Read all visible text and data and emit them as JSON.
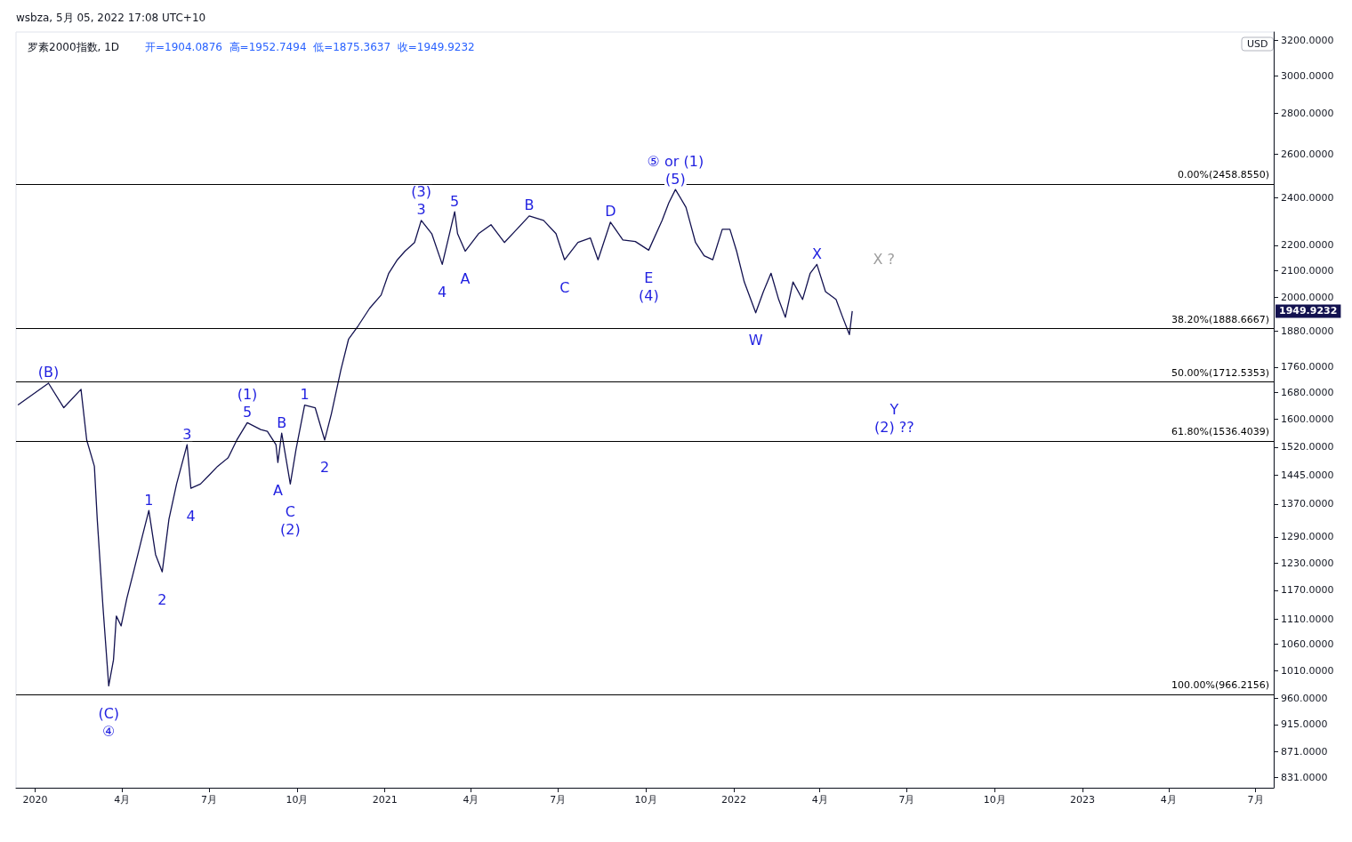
{
  "chart_data": {
    "type": "line",
    "title": "罗素2000指数, 1D",
    "subtitle": "开=1904.0876  高=1952.7494  低=1875.3637  收=1949.9232",
    "log": "y",
    "marker": "none",
    "line_style": "solid",
    "x": [
      "2019-12-14",
      "2020-01-15",
      "2020-01-31",
      "2020-02-18",
      "2020-02-24",
      "2020-03-03",
      "2020-03-06",
      "2020-03-12",
      "2020-03-18",
      "2020-03-23",
      "2020-03-26",
      "2020-03-31",
      "2020-04-06",
      "2020-04-13",
      "2020-04-22",
      "2020-04-29",
      "2020-05-06",
      "2020-05-13",
      "2020-05-20",
      "2020-05-28",
      "2020-06-08",
      "2020-06-12",
      "2020-06-22",
      "2020-07-01",
      "2020-07-10",
      "2020-07-21",
      "2020-07-30",
      "2020-08-10",
      "2020-08-24",
      "2020-08-31",
      "2020-09-09",
      "2020-09-11",
      "2020-09-15",
      "2020-09-24",
      "2020-09-30",
      "2020-10-09",
      "2020-10-20",
      "2020-10-30",
      "2020-11-06",
      "2020-11-16",
      "2020-11-24",
      "2020-12-04",
      "2020-12-16",
      "2020-12-28",
      "2021-01-05",
      "2021-01-14",
      "2021-01-22",
      "2021-02-01",
      "2021-02-08",
      "2021-02-19",
      "2021-03-02",
      "2021-03-15",
      "2021-03-18",
      "2021-03-26",
      "2021-04-09",
      "2021-04-22",
      "2021-05-06",
      "2021-05-19",
      "2021-06-01",
      "2021-06-16",
      "2021-06-29",
      "2021-07-08",
      "2021-07-22",
      "2021-08-04",
      "2021-08-12",
      "2021-08-25",
      "2021-09-07",
      "2021-09-20",
      "2021-10-04",
      "2021-10-18",
      "2021-10-25",
      "2021-11-01",
      "2021-11-12",
      "2021-11-22",
      "2021-12-01",
      "2021-12-10",
      "2021-12-20",
      "2021-12-28",
      "2022-01-04",
      "2022-01-12",
      "2022-01-24",
      "2022-02-01",
      "2022-02-09",
      "2022-02-17",
      "2022-02-24",
      "2022-03-04",
      "2022-03-14",
      "2022-03-22",
      "2022-03-29",
      "2022-04-07",
      "2022-04-18",
      "2022-04-25",
      "2022-05-02",
      "2022-05-05"
    ],
    "series": [
      {
        "color": "#131250",
        "values": [
          1642,
          1709,
          1634,
          1690,
          1540,
          1468,
          1332,
          1135,
          982,
          1030,
          1116,
          1096,
          1153,
          1210,
          1290,
          1354,
          1249,
          1210,
          1332,
          1421,
          1527,
          1410,
          1421,
          1444,
          1468,
          1491,
          1540,
          1590,
          1570,
          1565,
          1527,
          1478,
          1560,
          1421,
          1514,
          1642,
          1634,
          1540,
          1616,
          1752,
          1853,
          1898,
          1960,
          2008,
          2090,
          2142,
          2176,
          2211,
          2302,
          2247,
          2124,
          2339,
          2247,
          2176,
          2247,
          2284,
          2211,
          2265,
          2321,
          2302,
          2247,
          2142,
          2211,
          2229,
          2142,
          2295,
          2221,
          2215,
          2180,
          2302,
          2377,
          2436,
          2358,
          2211,
          2158,
          2142,
          2265,
          2265,
          2176,
          2057,
          1944,
          2021,
          2090,
          1992,
          1928,
          2057,
          1992,
          2090,
          2124,
          2021,
          1992,
          1928,
          1868,
          1949.9232
        ]
      }
    ],
    "xlim": [
      "2019-12-12",
      "2023-07-20"
    ],
    "xticks": [
      {
        "value": "2020-01-01",
        "label": "2020"
      },
      {
        "value": "2020-04-01",
        "label": "4月"
      },
      {
        "value": "2020-07-01",
        "label": "7月"
      },
      {
        "value": "2020-10-01",
        "label": "10月"
      },
      {
        "value": "2021-01-01",
        "label": "2021"
      },
      {
        "value": "2021-04-01",
        "label": "4月"
      },
      {
        "value": "2021-07-01",
        "label": "7月"
      },
      {
        "value": "2021-10-01",
        "label": "10月"
      },
      {
        "value": "2022-01-01",
        "label": "2022"
      },
      {
        "value": "2022-04-01",
        "label": "4月"
      },
      {
        "value": "2022-07-01",
        "label": "7月"
      },
      {
        "value": "2022-10-01",
        "label": "10月"
      },
      {
        "value": "2023-01-01",
        "label": "2023"
      },
      {
        "value": "2023-04-01",
        "label": "4月"
      },
      {
        "value": "2023-07-01",
        "label": "7月"
      }
    ],
    "ylim": [
      815,
      3250
    ],
    "yticks": [
      {
        "value": 831,
        "label": "831.0000"
      },
      {
        "value": 871,
        "label": "871.0000"
      },
      {
        "value": 915,
        "label": "915.0000"
      },
      {
        "value": 960,
        "label": "960.0000"
      },
      {
        "value": 1010,
        "label": "1010.0000"
      },
      {
        "value": 1060,
        "label": "1060.0000"
      },
      {
        "value": 1110,
        "label": "1110.0000"
      },
      {
        "value": 1170,
        "label": "1170.0000"
      },
      {
        "value": 1230,
        "label": "1230.0000"
      },
      {
        "value": 1290,
        "label": "1290.0000"
      },
      {
        "value": 1370,
        "label": "1370.0000"
      },
      {
        "value": 1445,
        "label": "1445.0000"
      },
      {
        "value": 1520,
        "label": "1520.0000"
      },
      {
        "value": 1600,
        "label": "1600.0000"
      },
      {
        "value": 1680,
        "label": "1680.0000"
      },
      {
        "value": 1760,
        "label": "1760.0000"
      },
      {
        "value": 1880,
        "label": "1880.0000"
      },
      {
        "value": 2000,
        "label": "2000.0000"
      },
      {
        "value": 2100,
        "label": "2100.0000"
      },
      {
        "value": 2200,
        "label": "2200.0000"
      },
      {
        "value": 2400,
        "label": "2400.0000"
      },
      {
        "value": 2600,
        "label": "2600.0000"
      },
      {
        "value": 2800,
        "label": "2800.0000"
      },
      {
        "value": 3000,
        "label": "3000.0000"
      },
      {
        "value": 3200,
        "label": "3200.0000"
      }
    ],
    "ref_lines": [
      {
        "axis": "y",
        "value": 2458.855,
        "label": "0.00%(2458.8550)",
        "color": "#000000"
      },
      {
        "axis": "y",
        "value": 1888.6667,
        "label": "38.20%(1888.6667)",
        "color": "#000000"
      },
      {
        "axis": "y",
        "value": 1712.5353,
        "label": "50.00%(1712.5353)",
        "color": "#000000"
      },
      {
        "axis": "y",
        "value": 1536.4039,
        "label": "61.80%(1536.4039)",
        "color": "#000000"
      },
      {
        "axis": "y",
        "value": 966.2156,
        "label": "100.00%(966.2156)",
        "color": "#000000"
      }
    ],
    "annotations": [
      "wsbza, 5月 05, 2022 17:08 UTC+10",
      "USD",
      "1949.9232",
      "X ?",
      {
        "text": "(B)",
        "x": "2020-01-15",
        "y": 1709
      },
      {
        "text": "(C)",
        "x": "2020-03-18",
        "y": 982
      },
      {
        "text": "④",
        "x": "2020-03-18",
        "y": 982
      },
      {
        "text": "1",
        "x": "2020-04-29",
        "y": 1354
      },
      {
        "text": "2",
        "x": "2020-05-13",
        "y": 1210
      },
      {
        "text": "3",
        "x": "2020-06-08",
        "y": 1527
      },
      {
        "text": "4",
        "x": "2020-06-12",
        "y": 1410
      },
      {
        "text": "5",
        "x": "2020-08-10",
        "y": 1590
      },
      {
        "text": "(1)",
        "x": "2020-08-10",
        "y": 1590
      },
      {
        "text": "A",
        "x": "2020-09-11",
        "y": 1478
      },
      {
        "text": "B",
        "x": "2020-09-15",
        "y": 1560
      },
      {
        "text": "C",
        "x": "2020-09-24",
        "y": 1421
      },
      {
        "text": "(2)",
        "x": "2020-09-24",
        "y": 1421
      },
      {
        "text": "1",
        "x": "2020-10-09",
        "y": 1642
      },
      {
        "text": "2",
        "x": "2020-10-30",
        "y": 1540
      },
      {
        "text": "3",
        "x": "2021-02-08",
        "y": 2302
      },
      {
        "text": "(3)",
        "x": "2021-02-08",
        "y": 2302
      },
      {
        "text": "4",
        "x": "2021-03-02",
        "y": 2124
      },
      {
        "text": "5",
        "x": "2021-03-15",
        "y": 2339
      },
      {
        "text": "A",
        "x": "2021-03-26",
        "y": 2176
      },
      {
        "text": "B",
        "x": "2021-06-01",
        "y": 2321
      },
      {
        "text": "C",
        "x": "2021-07-08",
        "y": 2142
      },
      {
        "text": "D",
        "x": "2021-08-25",
        "y": 2295
      },
      {
        "text": "E",
        "x": "2021-10-04",
        "y": 2180
      },
      {
        "text": "(4)",
        "x": "2021-10-04",
        "y": 2180
      },
      {
        "text": "(5)",
        "x": "2021-11-01",
        "y": 2436
      },
      {
        "text": "⑤ or (1)",
        "x": "2021-11-01",
        "y": 2436
      },
      {
        "text": "W",
        "x": "2022-01-24",
        "y": 1944
      },
      {
        "text": "X",
        "x": "2022-03-29",
        "y": 2124
      },
      {
        "text": "Y",
        "x": "2022-06-18",
        "y": 1712.5353
      },
      {
        "text": "(2) ??",
        "x": "2022-06-18",
        "y": 1712.5353
      }
    ]
  }
}
